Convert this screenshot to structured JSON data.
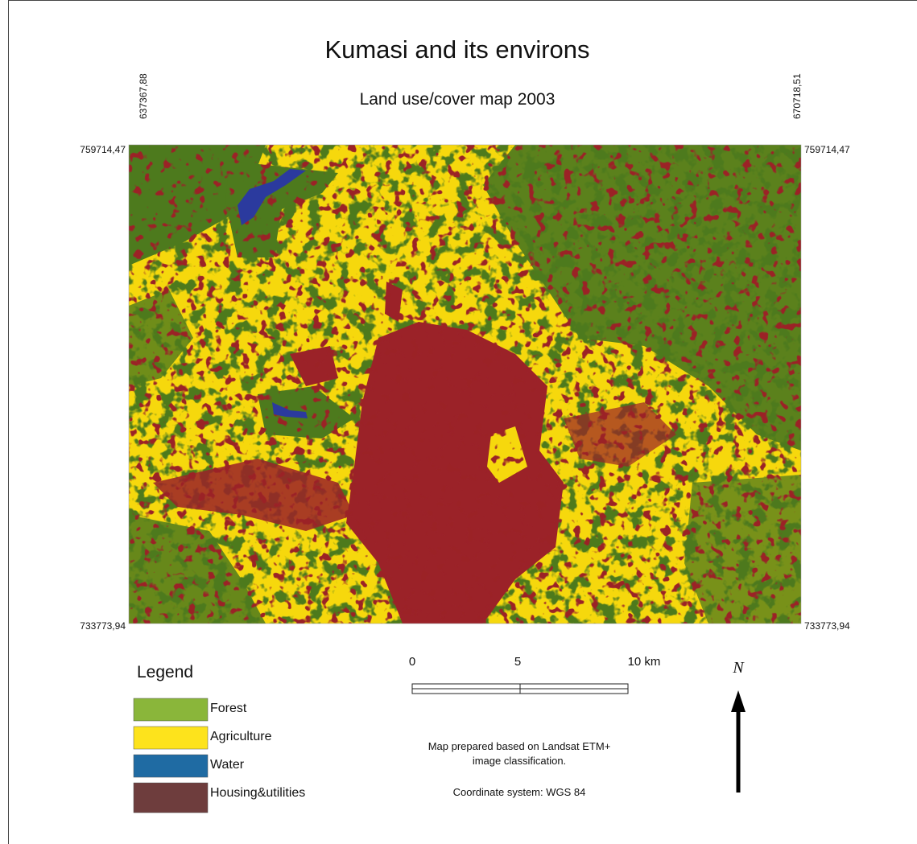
{
  "title": "Kumasi and its environs",
  "subtitle": "Land use/cover map 2003",
  "coordinates": {
    "top_left_x": "637367,88",
    "top_right_x": "670718,51",
    "left_top_y": "759714,47",
    "right_top_y": "759714,47",
    "left_bottom_y": "733773,94",
    "right_bottom_y": "733773,94"
  },
  "legend": {
    "title": "Legend",
    "items": [
      {
        "label": "Forest",
        "color": "#8ab63a"
      },
      {
        "label": "Agriculture",
        "color": "#fde31c"
      },
      {
        "label": "Water",
        "color": "#1f6ba3"
      },
      {
        "label": "Housing&utilities",
        "color": "#6e3d3d"
      }
    ]
  },
  "scale_bar": {
    "labels": [
      "0",
      "5",
      "10 km"
    ]
  },
  "north_label": "N",
  "notes": [
    "Map prepared based on Landsat ETM+",
    "image classification.",
    "Coordinate system: WGS 84"
  ]
}
